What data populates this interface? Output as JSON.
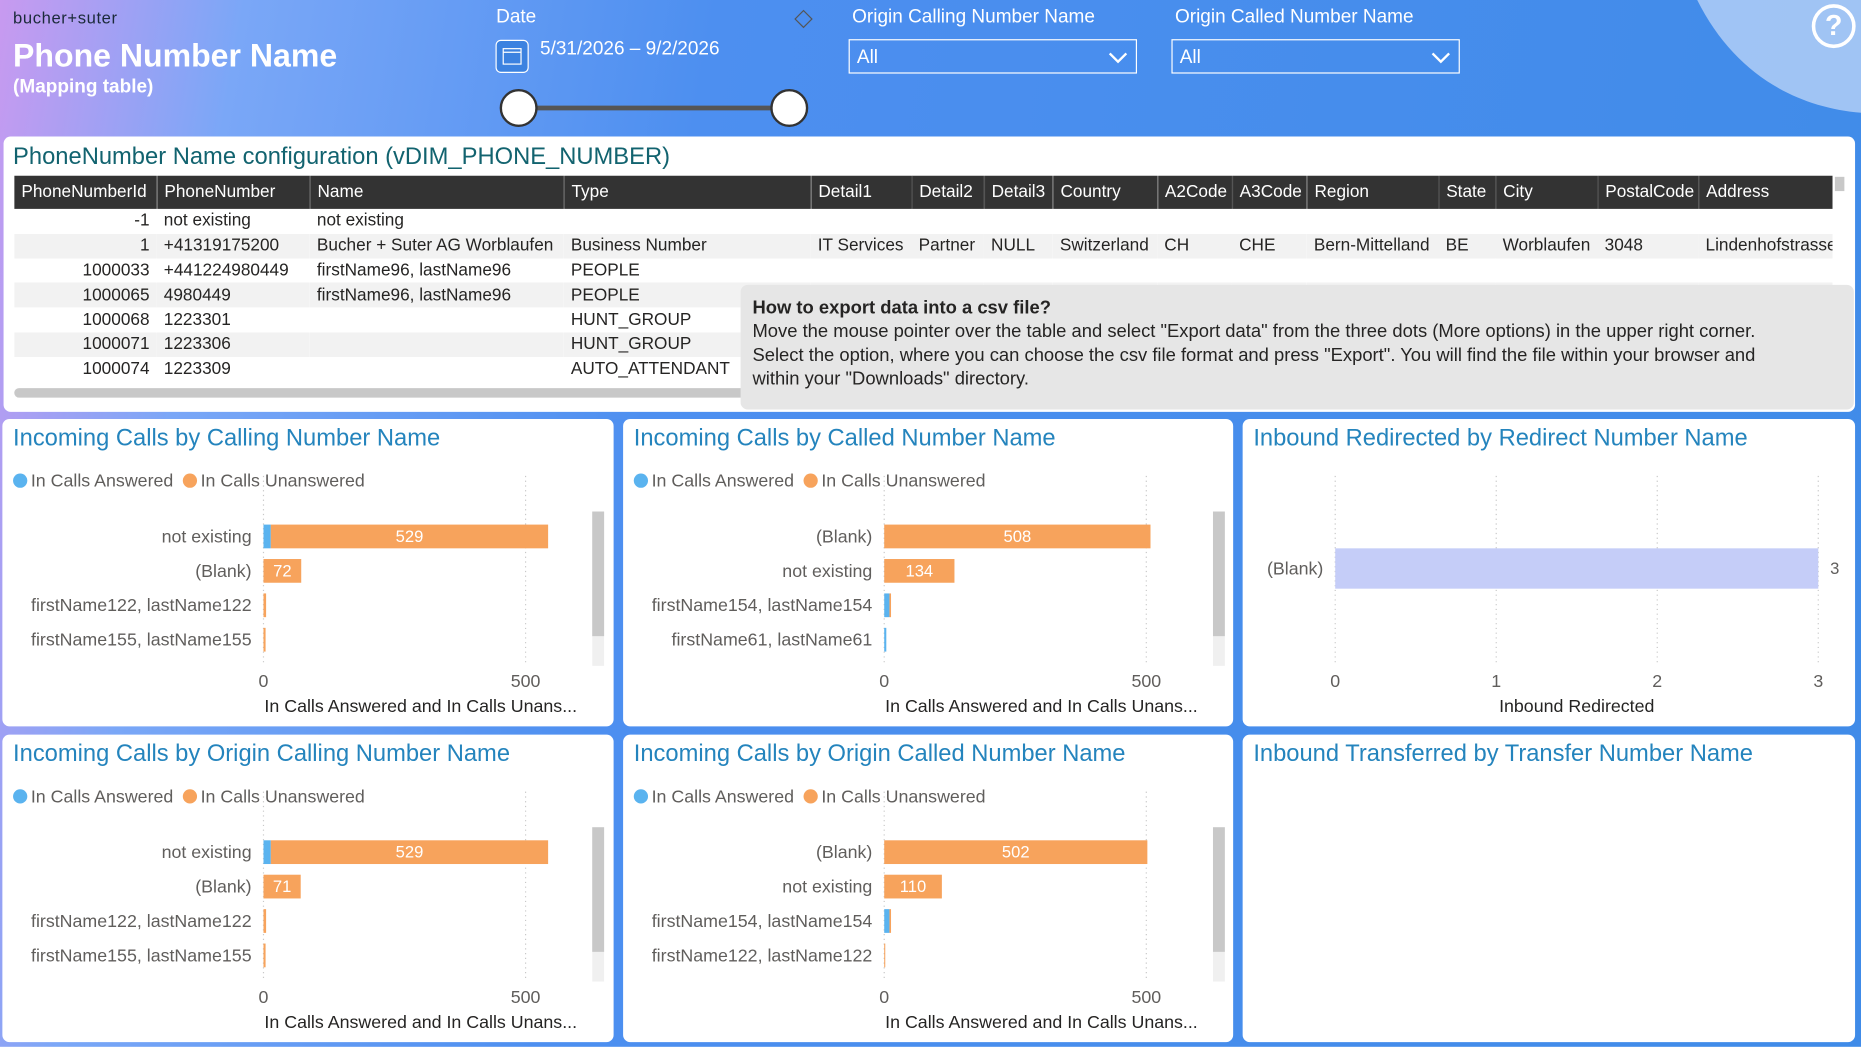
{
  "header": {
    "brand": "bucher+suter",
    "title": "Phone Number Name",
    "subtitle": "(Mapping table)"
  },
  "filters": {
    "date_label": "Date",
    "date_range": "5/31/2026 – 9/2/2026",
    "calling_label": "Origin Calling Number Name",
    "calling_value": "All",
    "called_label": "Origin Called Number Name",
    "called_value": "All"
  },
  "table": {
    "title": "PhoneNumber Name configuration (vDIM_PHONE_NUMBER)",
    "columns": [
      "PhoneNumberId",
      "PhoneNumber",
      "Name",
      "Type",
      "Detail1",
      "Detail2",
      "Detail3",
      "Country",
      "A2Code",
      "A3Code",
      "Region",
      "State",
      "City",
      "PostalCode",
      "Address"
    ],
    "rows": [
      [
        "-1",
        "not existing",
        "not existing",
        null,
        null,
        null,
        null,
        null,
        null,
        null,
        null,
        null,
        null,
        null,
        null
      ],
      [
        "1",
        "+41319175200",
        "Bucher + Suter AG Worblaufen",
        "Business Number",
        "IT Services",
        "Partner",
        "NULL",
        "Switzerland",
        "CH",
        "CHE",
        "Bern-Mittelland",
        "BE",
        "Worblaufen",
        "3048",
        "Lindenhofstrasse"
      ],
      [
        "1000033",
        "+441224980449",
        "firstName96, lastName96",
        "PEOPLE",
        null,
        null,
        null,
        null,
        null,
        null,
        null,
        null,
        null,
        null,
        null
      ],
      [
        "1000065",
        "4980449",
        "firstName96, lastName96",
        "PEOPLE",
        null,
        null,
        null,
        null,
        null,
        null,
        null,
        null,
        null,
        null,
        null
      ],
      [
        "1000068",
        "1223301",
        null,
        "HUNT_GROUP",
        null,
        null,
        null,
        null,
        null,
        null,
        null,
        null,
        null,
        null,
        null
      ],
      [
        "1000071",
        "1223306",
        null,
        "HUNT_GROUP",
        null,
        null,
        null,
        null,
        null,
        null,
        null,
        null,
        null,
        null,
        null
      ],
      [
        "1000074",
        "1223309",
        null,
        "AUTO_ATTENDANT",
        null,
        null,
        null,
        null,
        null,
        null,
        null,
        null,
        null,
        null,
        null
      ]
    ]
  },
  "tooltip": {
    "title": "How to export data into a csv file?",
    "lines": [
      "Move the mouse pointer over the table and select \"Export data\" from the three dots (More options) in the upper right corner.",
      "Select the option, where you can choose the csv file format and press \"Export\". You will find the file within your browser and",
      "within your \"Downloads\" directory."
    ]
  },
  "chart_data": [
    {
      "type": "bar",
      "title": "Incoming Calls by Calling Number Name",
      "categories": [
        "not existing",
        "(Blank)",
        "firstName122, lastName122",
        "firstName155, lastName155"
      ],
      "series": [
        {
          "name": "In Calls Answered",
          "color": "#5ab3ef",
          "values": [
            14,
            0,
            0,
            0
          ]
        },
        {
          "name": "In Calls Unanswered",
          "color": "#f7a35c",
          "values": [
            529,
            72,
            5,
            4
          ]
        }
      ],
      "xlim": [
        0,
        600
      ],
      "xticks": [
        0,
        500
      ],
      "x_label": "In Calls Answered and In Calls Unans...",
      "grid": true
    },
    {
      "type": "bar",
      "title": "Incoming Calls by Called Number Name",
      "categories": [
        "(Blank)",
        "not existing",
        "firstName154, lastName154",
        "firstName61, lastName61"
      ],
      "series": [
        {
          "name": "In Calls Answered",
          "color": "#5ab3ef",
          "values": [
            0,
            0,
            10,
            4
          ]
        },
        {
          "name": "In Calls Unanswered",
          "color": "#f7a35c",
          "values": [
            508,
            134,
            3,
            0
          ]
        }
      ],
      "xlim": [
        0,
        600
      ],
      "xticks": [
        0,
        500
      ],
      "x_label": "In Calls Answered and In Calls Unans...",
      "grid": true
    },
    {
      "type": "bar",
      "title": "Inbound Redirected by Redirect Number Name",
      "categories": [
        "(Blank)"
      ],
      "values": [
        3
      ],
      "color": "#c5cdf8",
      "xlim": [
        0,
        3
      ],
      "xticks": [
        0,
        1,
        2,
        3
      ],
      "x_label": "Inbound Redirected",
      "grid": true
    },
    {
      "type": "bar",
      "title": "Incoming Calls by Origin Calling Number Name",
      "categories": [
        "not existing",
        "(Blank)",
        "firstName122, lastName122",
        "firstName155, lastName155"
      ],
      "series": [
        {
          "name": "In Calls Answered",
          "color": "#5ab3ef",
          "values": [
            14,
            0,
            0,
            0
          ]
        },
        {
          "name": "In Calls Unanswered",
          "color": "#f7a35c",
          "values": [
            529,
            71,
            5,
            4
          ]
        }
      ],
      "xlim": [
        0,
        600
      ],
      "xticks": [
        0,
        500
      ],
      "x_label": "In Calls Answered and In Calls Unans...",
      "grid": true
    },
    {
      "type": "bar",
      "title": "Incoming Calls by Origin Called Number Name",
      "categories": [
        "(Blank)",
        "not existing",
        "firstName154, lastName154",
        "firstName122, lastName122"
      ],
      "series": [
        {
          "name": "In Calls Answered",
          "color": "#5ab3ef",
          "values": [
            0,
            0,
            10,
            0
          ]
        },
        {
          "name": "In Calls Unanswered",
          "color": "#f7a35c",
          "values": [
            502,
            110,
            3,
            2
          ]
        }
      ],
      "xlim": [
        0,
        600
      ],
      "xticks": [
        0,
        500
      ],
      "x_label": "In Calls Answered and In Calls Unans...",
      "grid": true
    },
    {
      "type": "bar",
      "title": "Inbound Transferred by Transfer Number Name"
    }
  ]
}
